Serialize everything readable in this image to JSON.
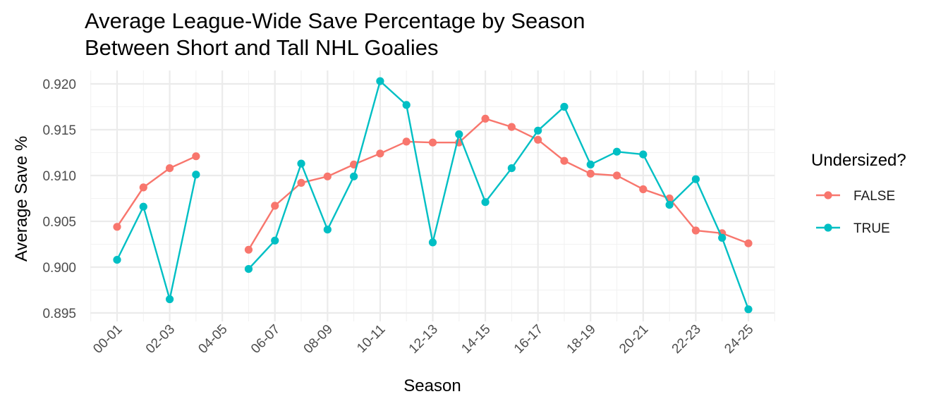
{
  "chart_data": {
    "type": "line",
    "title": [
      "Average League-Wide Save Percentage by Season",
      "Between Short and Tall NHL Goalies"
    ],
    "xlabel": "Season",
    "ylabel": "Average Save %",
    "ylim": [
      0.8945,
      0.921
    ],
    "yticks": [
      "0.895",
      "0.900",
      "0.905",
      "0.910",
      "0.915",
      "0.920"
    ],
    "ytick_values": [
      0.895,
      0.9,
      0.905,
      0.91,
      0.915,
      0.92
    ],
    "seasons": [
      "00-01",
      "01-02",
      "02-03",
      "03-04",
      "04-05",
      "05-06",
      "06-07",
      "07-08",
      "08-09",
      "09-10",
      "10-11",
      "11-12",
      "12-13",
      "13-14",
      "14-15",
      "15-16",
      "16-17",
      "17-18",
      "18-19",
      "19-20",
      "20-21",
      "21-22",
      "22-23",
      "23-24",
      "24-25"
    ],
    "xticks": [
      "00-01",
      "02-03",
      "04-05",
      "06-07",
      "08-09",
      "10-11",
      "12-13",
      "14-15",
      "16-17",
      "18-19",
      "20-21",
      "22-23",
      "24-25"
    ],
    "grid": true,
    "legend": {
      "title": "Undersized?",
      "position": "right"
    },
    "series": [
      {
        "name": "FALSE",
        "color": "#F8766D",
        "values": [
          0.9044,
          0.9087,
          0.9108,
          0.9121,
          null,
          0.9019,
          0.9067,
          0.9092,
          0.9099,
          0.9112,
          0.9124,
          0.9137,
          0.9136,
          0.9136,
          0.9162,
          0.9153,
          0.9139,
          0.9116,
          0.9102,
          0.91,
          0.9085,
          0.9075,
          0.904,
          0.9037,
          0.9026
        ]
      },
      {
        "name": "TRUE",
        "color": "#00BFC4",
        "values": [
          0.9008,
          0.9066,
          0.8965,
          0.9101,
          null,
          0.8998,
          0.9029,
          0.9113,
          0.9041,
          0.9099,
          0.9203,
          0.9177,
          0.9027,
          0.9145,
          0.9071,
          0.9108,
          0.9149,
          0.9175,
          0.9112,
          0.9126,
          0.9123,
          0.9068,
          0.9096,
          0.9032,
          0.8954
        ]
      }
    ]
  }
}
